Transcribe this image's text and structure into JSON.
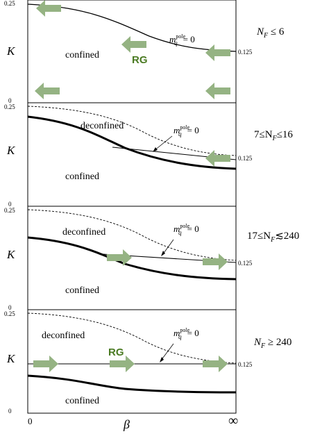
{
  "colors": {
    "arrow": "#95b383",
    "rg_label": "#4a7a22",
    "ink": "#000000"
  },
  "axis": {
    "y_symbol": "K",
    "x_symbol": "β",
    "x_min_label": "0",
    "x_max_label": "∞",
    "tick_top": "0.25",
    "tick_bottom": "0",
    "tick_right": "0.125"
  },
  "mass_label": {
    "m": "m",
    "superscript": "pole",
    "subscript": "q",
    "rhs": "= 0"
  },
  "rg_label": "RG",
  "panels": [
    {
      "nf_label": {
        "pre": "N",
        "sub": "F",
        "post": " ≤ 6"
      },
      "labels": {
        "confined": "confined"
      },
      "curves": {
        "thick": false,
        "dashed": false,
        "flat_line": false
      },
      "arrows": [
        "left",
        "left",
        "left",
        "left",
        "left",
        "left"
      ],
      "rg": true
    },
    {
      "nf_label": {
        "pre": "7≤N",
        "sub": "F",
        "post": "≤16"
      },
      "labels": {
        "confined": "confined",
        "deconfined": "deconfined"
      },
      "curves": {
        "thick": true,
        "dashed": true,
        "flat_line": false
      },
      "arrows": [
        "left"
      ],
      "rg": false
    },
    {
      "nf_label": {
        "pre": "17≤N",
        "sub": "F",
        "post": "≲240"
      },
      "labels": {
        "confined": "confined",
        "deconfined": "deconfined"
      },
      "curves": {
        "thick": true,
        "dashed": true,
        "flat_line": false
      },
      "arrows": [
        "right",
        "right"
      ],
      "rg": false
    },
    {
      "nf_label": {
        "pre": "N",
        "sub": "F",
        "post": " ≥ 240"
      },
      "labels": {
        "confined": "confined",
        "deconfined": "deconfined"
      },
      "curves": {
        "thick": true,
        "dashed": true,
        "flat_line": true
      },
      "arrows": [
        "right",
        "right",
        "right"
      ],
      "rg": true
    }
  ]
}
